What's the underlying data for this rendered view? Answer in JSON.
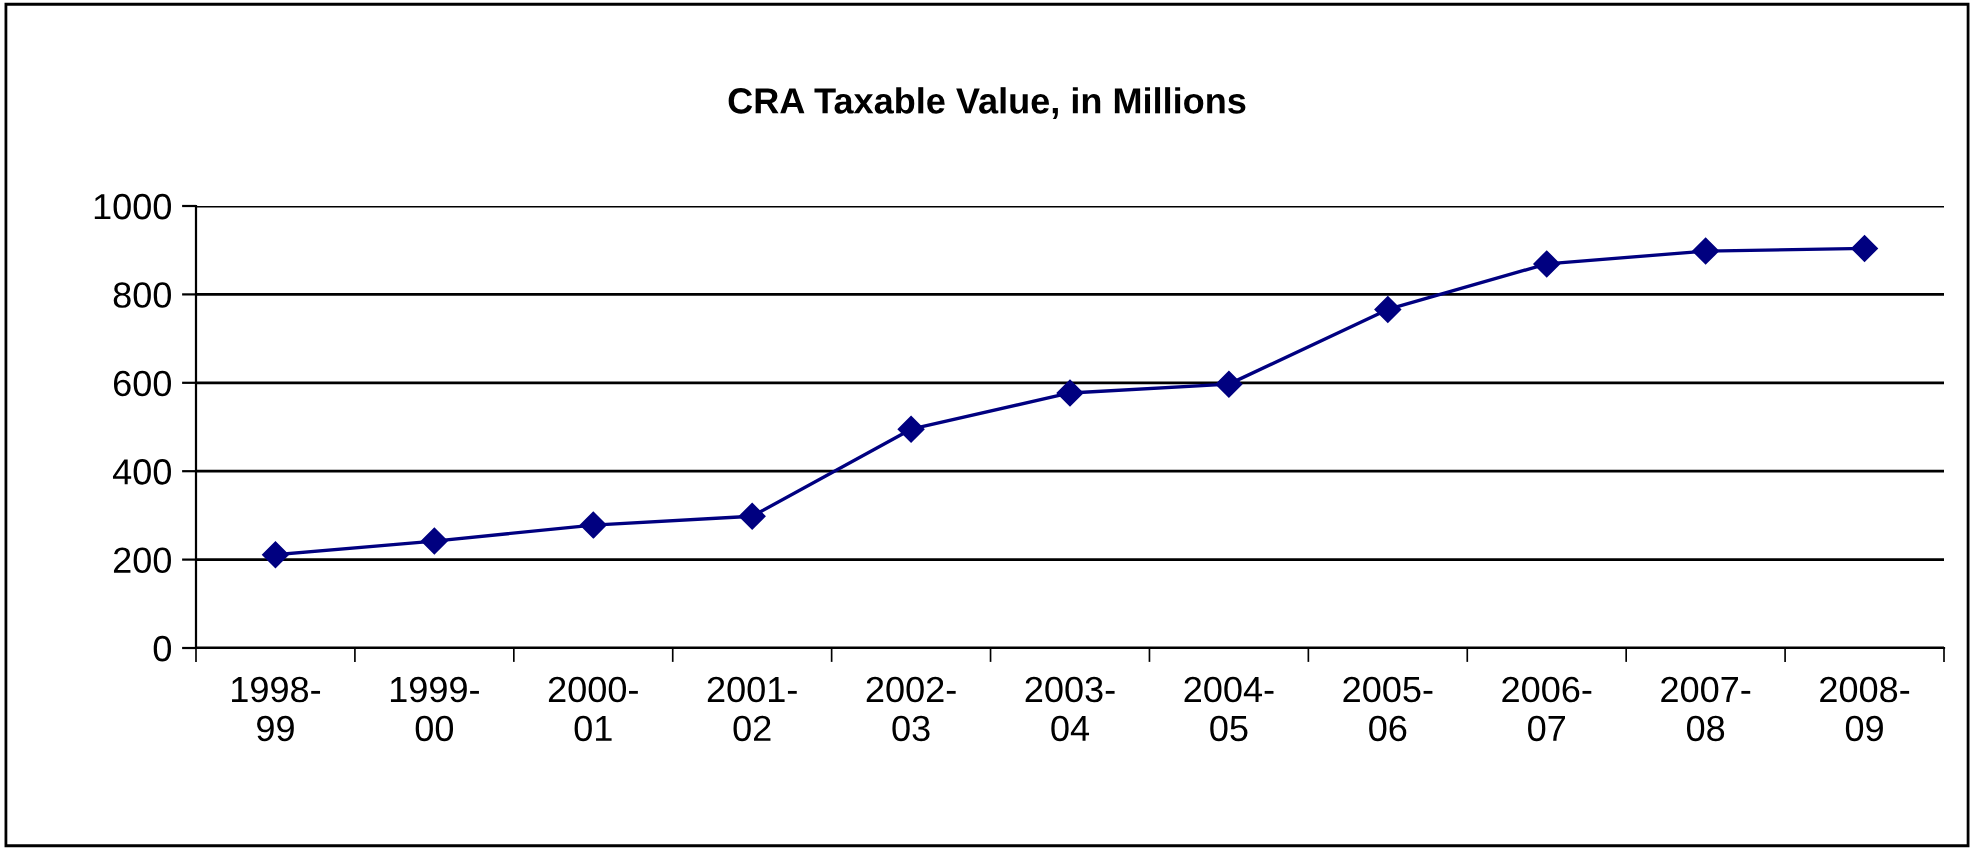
{
  "chart_data": {
    "type": "line",
    "title": "CRA Taxable Value, in Millions",
    "categories": [
      "1998-99",
      "1999-00",
      "2000-01",
      "2001-02",
      "2002-03",
      "2003-04",
      "2004-05",
      "2005-06",
      "2006-07",
      "2007-08",
      "2008-09"
    ],
    "series": [
      {
        "color": "#000080",
        "values": [
          211,
          242,
          278,
          298,
          495,
          577,
          597,
          766,
          869,
          898,
          904
        ]
      }
    ],
    "ylim": [
      0,
      1000
    ],
    "yticks": [
      0,
      200,
      400,
      600,
      800,
      1000
    ],
    "grid": "y",
    "legend": false,
    "marker": "diamond",
    "line_style": "solid"
  }
}
